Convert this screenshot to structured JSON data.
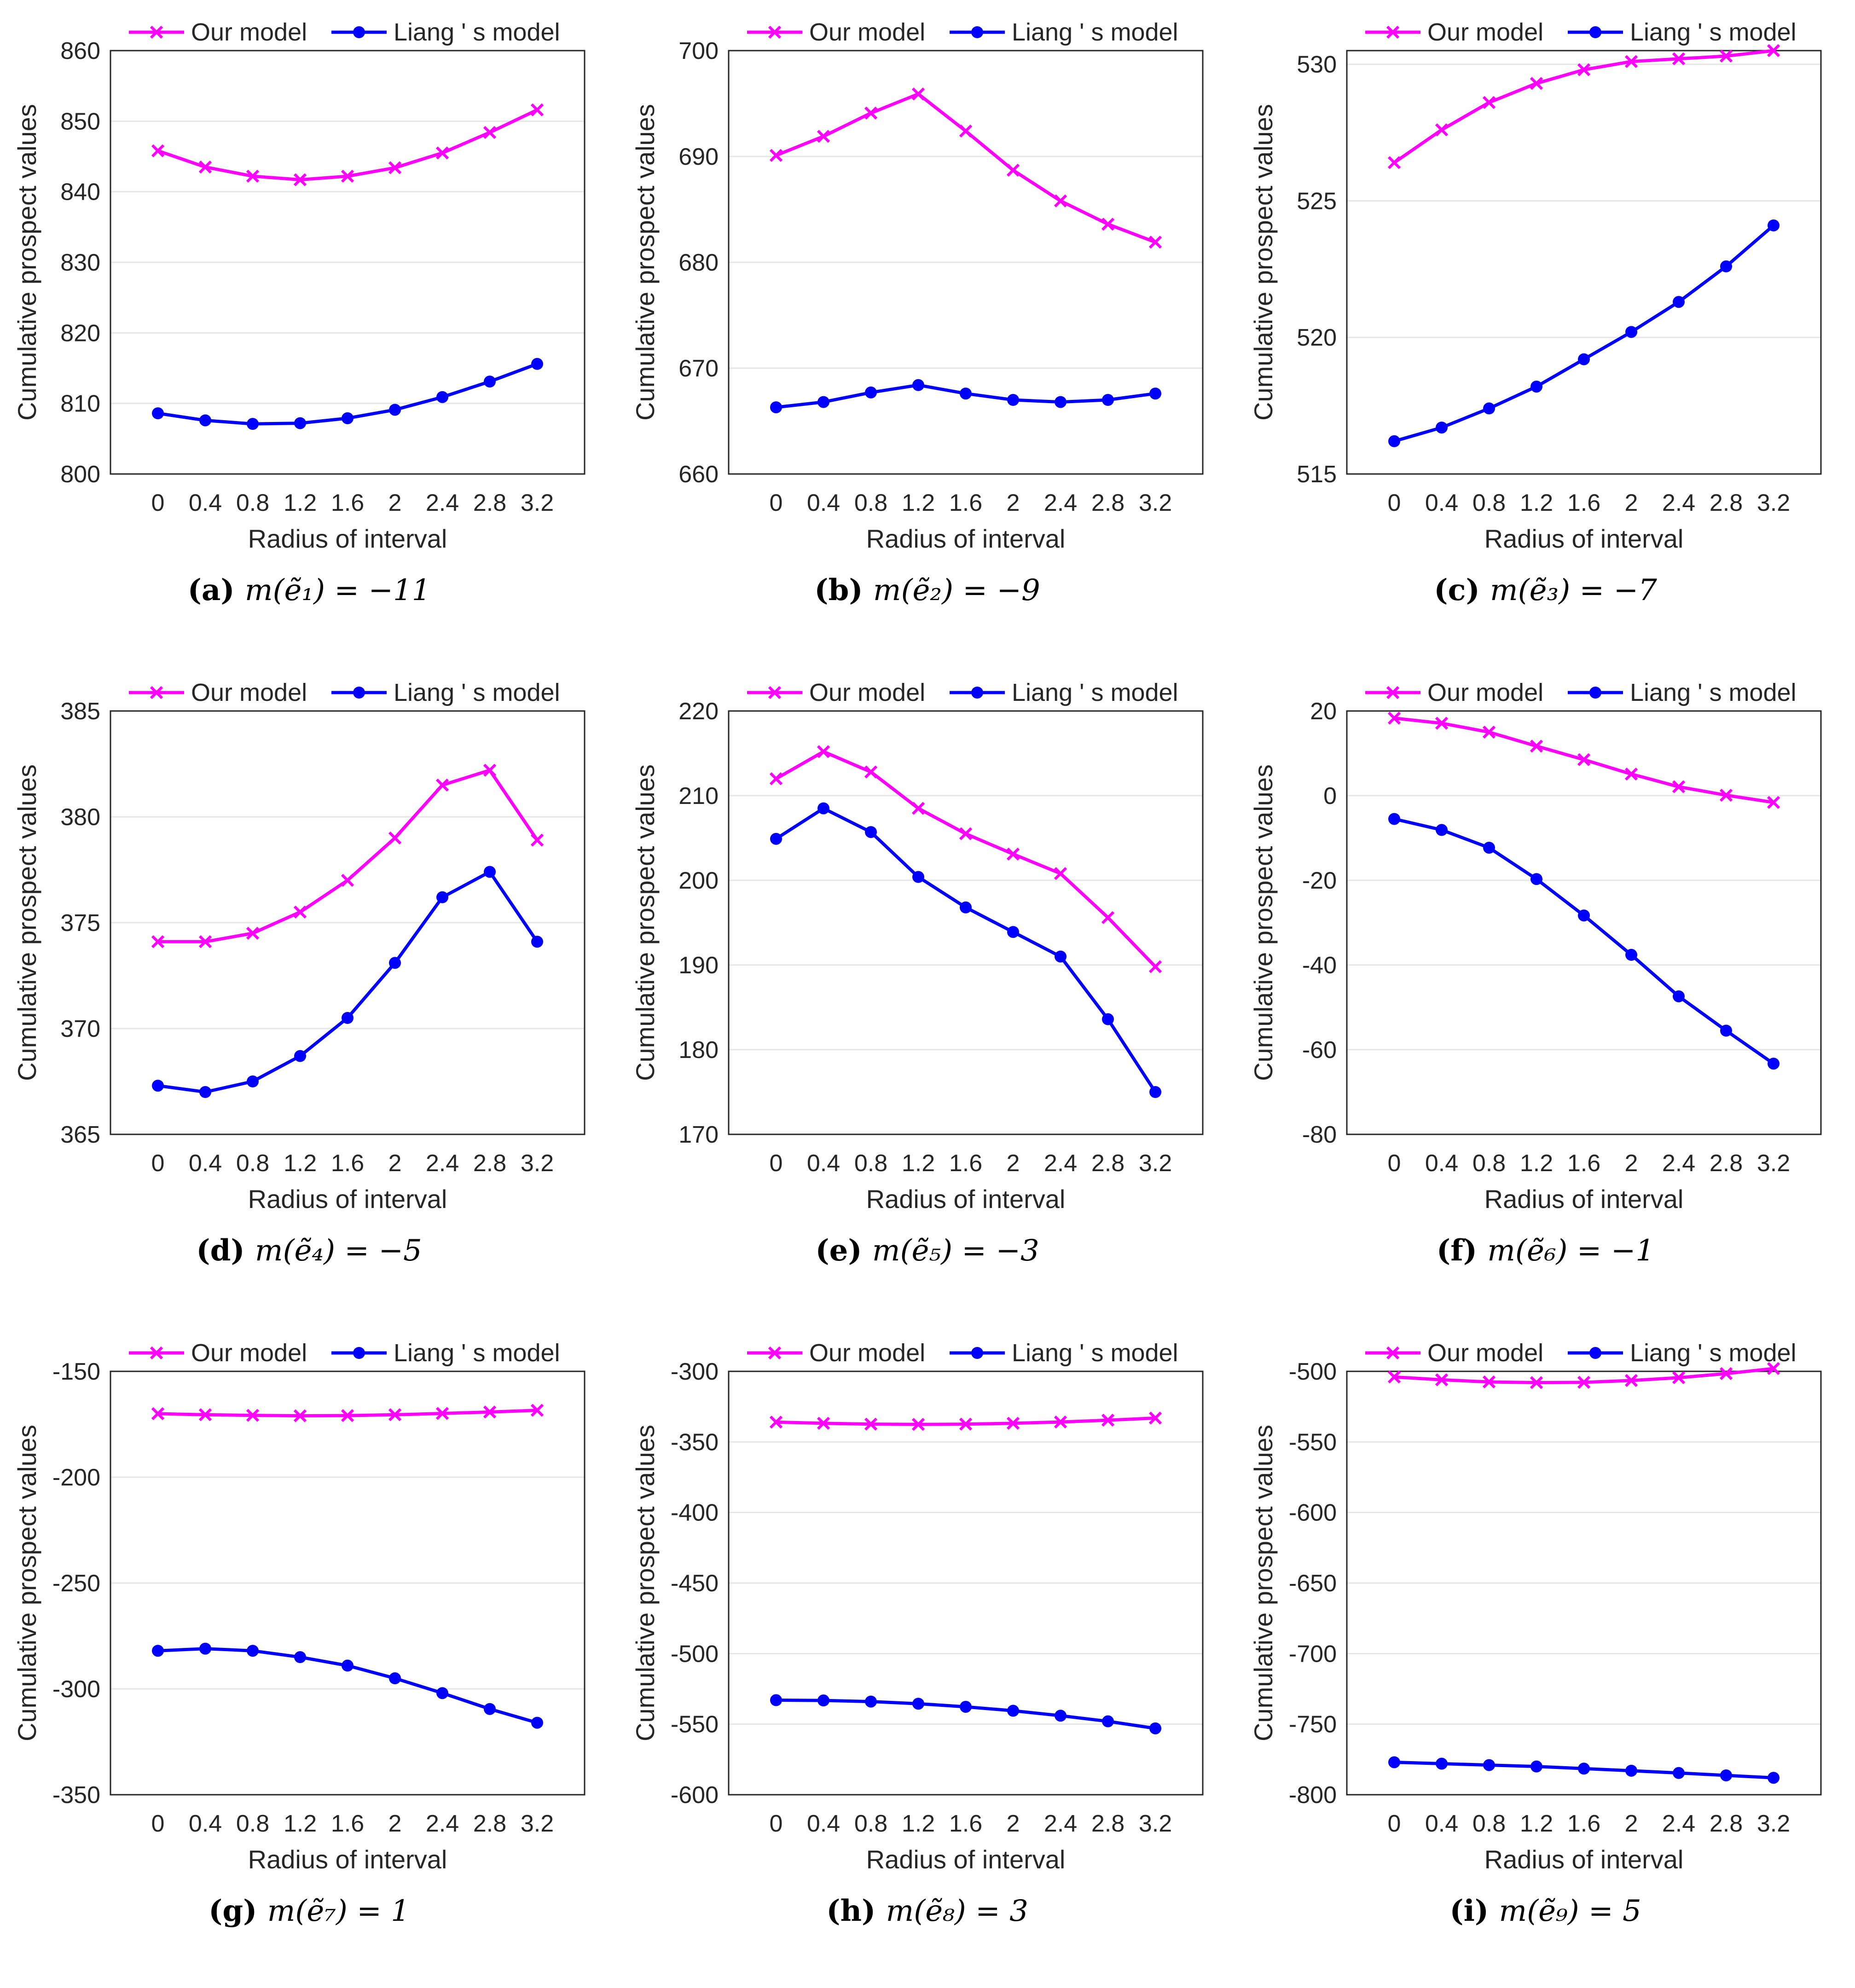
{
  "chart_data": [
    {
      "type": "line",
      "panel_label": "(a)",
      "caption": "m(ẽ₁) = −11",
      "ylabel": "Cumulative prospect values",
      "xlabel": "Radius of interval",
      "categories": [
        "0",
        "0.4",
        "0.8",
        "1.2",
        "1.6",
        "2",
        "2.4",
        "2.8",
        "3.2"
      ],
      "ylim": [
        800,
        860
      ],
      "yticks": [
        800,
        810,
        820,
        830,
        840,
        850,
        860
      ],
      "series": [
        {
          "name": "Our model",
          "color": "#ff00ff",
          "marker": "x",
          "values": [
            845.8,
            843.5,
            842.2,
            841.7,
            842.2,
            843.4,
            845.5,
            848.4,
            851.6
          ]
        },
        {
          "name": "Liang ' s model",
          "color": "#0000ff",
          "marker": "o",
          "values": [
            808.6,
            807.6,
            807.1,
            807.2,
            807.9,
            809.1,
            810.9,
            813.1,
            815.6
          ]
        }
      ]
    },
    {
      "type": "line",
      "panel_label": "(b)",
      "caption": "m(ẽ₂) = −9",
      "ylabel": "Cumulative prospect values",
      "xlabel": "Radius of interval",
      "categories": [
        "0",
        "0.4",
        "0.8",
        "1.2",
        "1.6",
        "2",
        "2.4",
        "2.8",
        "3.2"
      ],
      "ylim": [
        660,
        700
      ],
      "yticks": [
        660,
        670,
        680,
        690,
        700
      ],
      "series": [
        {
          "name": "Our model",
          "color": "#ff00ff",
          "marker": "x",
          "values": [
            690.1,
            691.9,
            694.1,
            695.9,
            692.4,
            688.7,
            685.8,
            683.6,
            681.9
          ]
        },
        {
          "name": "Liang ' s model",
          "color": "#0000ff",
          "marker": "o",
          "values": [
            666.3,
            666.8,
            667.7,
            668.4,
            667.6,
            667.0,
            666.8,
            667.0,
            667.6
          ]
        }
      ]
    },
    {
      "type": "line",
      "panel_label": "(c)",
      "caption": "m(ẽ₃) = −7",
      "ylabel": "Cumulative prospect values",
      "xlabel": "Radius of interval",
      "categories": [
        "0",
        "0.4",
        "0.8",
        "1.2",
        "1.6",
        "2",
        "2.4",
        "2.8",
        "3.2"
      ],
      "ylim": [
        515,
        530.5
      ],
      "yticks": [
        515,
        520,
        525,
        530
      ],
      "series": [
        {
          "name": "Our model",
          "color": "#ff00ff",
          "marker": "x",
          "values": [
            526.4,
            527.6,
            528.6,
            529.3,
            529.8,
            530.1,
            530.2,
            530.3,
            530.5
          ]
        },
        {
          "name": "Liang ' s model",
          "color": "#0000ff",
          "marker": "o",
          "values": [
            516.2,
            516.7,
            517.4,
            518.2,
            519.2,
            520.2,
            521.3,
            522.6,
            524.1
          ]
        }
      ]
    },
    {
      "type": "line",
      "panel_label": "(d)",
      "caption": "m(ẽ₄) = −5",
      "ylabel": "Cumulative prospect values",
      "xlabel": "Radius of interval",
      "categories": [
        "0",
        "0.4",
        "0.8",
        "1.2",
        "1.6",
        "2",
        "2.4",
        "2.8",
        "3.2"
      ],
      "ylim": [
        365,
        385
      ],
      "yticks": [
        365,
        370,
        375,
        380,
        385
      ],
      "series": [
        {
          "name": "Our model",
          "color": "#ff00ff",
          "marker": "x",
          "values": [
            374.1,
            374.1,
            374.5,
            375.5,
            377.0,
            379.0,
            381.5,
            382.2,
            378.9
          ]
        },
        {
          "name": "Liang ' s model",
          "color": "#0000ff",
          "marker": "o",
          "values": [
            367.3,
            367.0,
            367.5,
            368.7,
            370.5,
            373.1,
            376.2,
            377.4,
            374.1
          ]
        }
      ]
    },
    {
      "type": "line",
      "panel_label": "(e)",
      "caption": "m(ẽ₅) = −3",
      "ylabel": "Cumulative prospect values",
      "xlabel": "Radius of interval",
      "categories": [
        "0",
        "0.4",
        "0.8",
        "1.2",
        "1.6",
        "2",
        "2.4",
        "2.8",
        "3.2"
      ],
      "ylim": [
        170,
        220
      ],
      "yticks": [
        170,
        180,
        190,
        200,
        210,
        220
      ],
      "series": [
        {
          "name": "Our model",
          "color": "#ff00ff",
          "marker": "x",
          "values": [
            212.0,
            215.2,
            212.8,
            208.5,
            205.5,
            203.1,
            200.8,
            195.6,
            189.8
          ]
        },
        {
          "name": "Liang ' s model",
          "color": "#0000ff",
          "marker": "o",
          "values": [
            204.9,
            208.5,
            205.7,
            200.4,
            196.8,
            193.9,
            191.0,
            183.6,
            175.0
          ]
        }
      ]
    },
    {
      "type": "line",
      "panel_label": "(f)",
      "caption": "m(ẽ₆) = −1",
      "ylabel": "Cumulative prospect values",
      "xlabel": "Radius of interval",
      "categories": [
        "0",
        "0.4",
        "0.8",
        "1.2",
        "1.6",
        "2",
        "2.4",
        "2.8",
        "3.2"
      ],
      "ylim": [
        -80,
        20
      ],
      "yticks": [
        -80,
        -60,
        -40,
        -20,
        0,
        20
      ],
      "series": [
        {
          "name": "Our model",
          "color": "#ff00ff",
          "marker": "x",
          "values": [
            18.3,
            17.1,
            15.0,
            11.7,
            8.5,
            5.1,
            2.1,
            0.1,
            -1.6
          ]
        },
        {
          "name": "Liang ' s model",
          "color": "#0000ff",
          "marker": "o",
          "values": [
            -5.5,
            -8.1,
            -12.3,
            -19.7,
            -28.3,
            -37.6,
            -47.4,
            -55.5,
            -63.3
          ]
        }
      ]
    },
    {
      "type": "line",
      "panel_label": "(g)",
      "caption": "m(ẽ₇) = 1",
      "ylabel": "Cumulative prospect values",
      "xlabel": "Radius of interval",
      "categories": [
        "0",
        "0.4",
        "0.8",
        "1.2",
        "1.6",
        "2",
        "2.4",
        "2.8",
        "3.2"
      ],
      "ylim": [
        -350,
        -150
      ],
      "yticks": [
        -350,
        -300,
        -250,
        -200,
        -150
      ],
      "series": [
        {
          "name": "Our model",
          "color": "#ff00ff",
          "marker": "x",
          "values": [
            -170.0,
            -170.5,
            -170.8,
            -171.0,
            -170.9,
            -170.5,
            -169.9,
            -169.2,
            -168.4
          ]
        },
        {
          "name": "Liang ' s model",
          "color": "#0000ff",
          "marker": "o",
          "values": [
            -282.0,
            -281.0,
            -282.0,
            -285.0,
            -289.0,
            -295.0,
            -302.0,
            -309.5,
            -316.0
          ]
        }
      ]
    },
    {
      "type": "line",
      "panel_label": "(h)",
      "caption": "m(ẽ₈) = 3",
      "ylabel": "Cumulative prospect values",
      "xlabel": "Radius of interval",
      "categories": [
        "0",
        "0.4",
        "0.8",
        "1.2",
        "1.6",
        "2",
        "2.4",
        "2.8",
        "3.2"
      ],
      "ylim": [
        -600,
        -300
      ],
      "yticks": [
        -600,
        -550,
        -500,
        -450,
        -400,
        -350,
        -300
      ],
      "series": [
        {
          "name": "Our model",
          "color": "#ff00ff",
          "marker": "x",
          "values": [
            -336.0,
            -336.8,
            -337.4,
            -337.6,
            -337.4,
            -336.8,
            -335.9,
            -334.6,
            -333.1
          ]
        },
        {
          "name": "Liang ' s model",
          "color": "#0000ff",
          "marker": "o",
          "values": [
            -533.0,
            -533.2,
            -534.0,
            -535.5,
            -537.7,
            -540.5,
            -544.0,
            -548.0,
            -553.0
          ]
        }
      ]
    },
    {
      "type": "line",
      "panel_label": "(i)",
      "caption": "m(ẽ₉) = 5",
      "ylabel": "Cumulative prospect values",
      "xlabel": "Radius of interval",
      "categories": [
        "0",
        "0.4",
        "0.8",
        "1.2",
        "1.6",
        "2",
        "2.4",
        "2.8",
        "3.2"
      ],
      "ylim": [
        -800,
        -500
      ],
      "yticks": [
        -800,
        -750,
        -700,
        -650,
        -600,
        -550,
        -500
      ],
      "series": [
        {
          "name": "Our model",
          "color": "#ff00ff",
          "marker": "x",
          "values": [
            -504.0,
            -506.0,
            -507.5,
            -508.0,
            -507.8,
            -506.5,
            -504.5,
            -501.6,
            -498.0
          ]
        },
        {
          "name": "Liang ' s model",
          "color": "#0000ff",
          "marker": "o",
          "values": [
            -777.0,
            -778.0,
            -779.0,
            -780.0,
            -781.5,
            -783.0,
            -784.6,
            -786.3,
            -788.0
          ]
        }
      ]
    }
  ]
}
